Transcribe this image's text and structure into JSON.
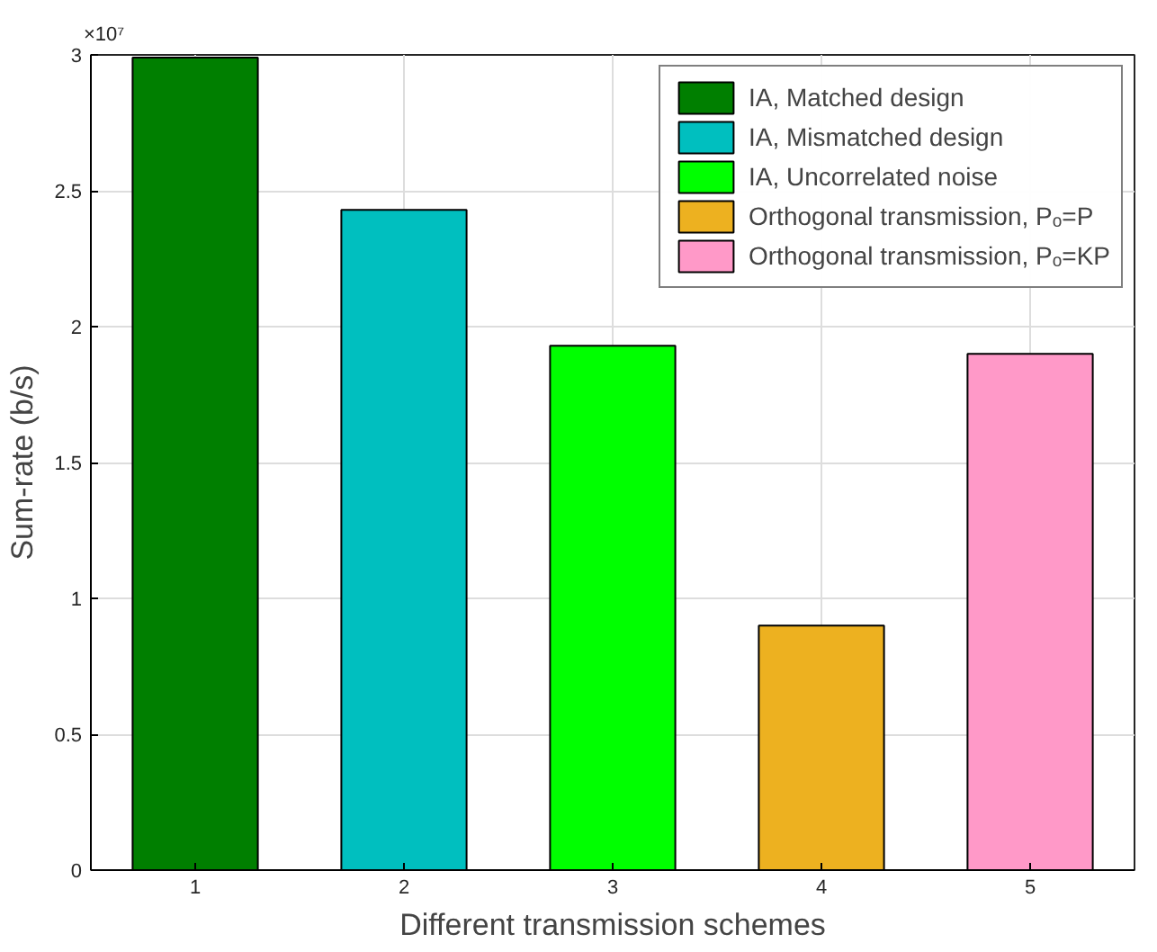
{
  "chart_data": {
    "type": "bar",
    "xlabel": "Different transmission schemes",
    "ylabel": "Sum-rate (b/s)",
    "x": [
      1,
      2,
      3,
      4,
      5
    ],
    "xlim": [
      0.5,
      5.5
    ],
    "xticks": [
      1,
      2,
      3,
      4,
      5
    ],
    "ylim": [
      0,
      3
    ],
    "yticks": [
      0,
      0.5,
      1,
      1.5,
      2,
      2.5,
      3
    ],
    "annotations": [
      "×10⁷"
    ],
    "grid": true,
    "legend": "top right",
    "series": [
      {
        "name": "IA, Matched design",
        "color": "#007f00",
        "values": [
          2.99,
          null,
          null,
          null,
          null
        ]
      },
      {
        "name": "IA, Mismatched design",
        "color": "#00bfbf",
        "values": [
          null,
          2.43,
          null,
          null,
          null
        ]
      },
      {
        "name": "IA, Uncorrelated noise",
        "color": "#00ff00",
        "values": [
          null,
          null,
          1.93,
          null,
          null
        ]
      },
      {
        "name": "Orthogonal transmission, Pₒ=P",
        "color": "#edb120",
        "values": [
          null,
          null,
          null,
          0.9,
          null
        ]
      },
      {
        "name": "Orthogonal transmission, Pₒ=KP",
        "color": "#ff99c8",
        "values": [
          null,
          null,
          null,
          null,
          1.9
        ]
      }
    ]
  }
}
